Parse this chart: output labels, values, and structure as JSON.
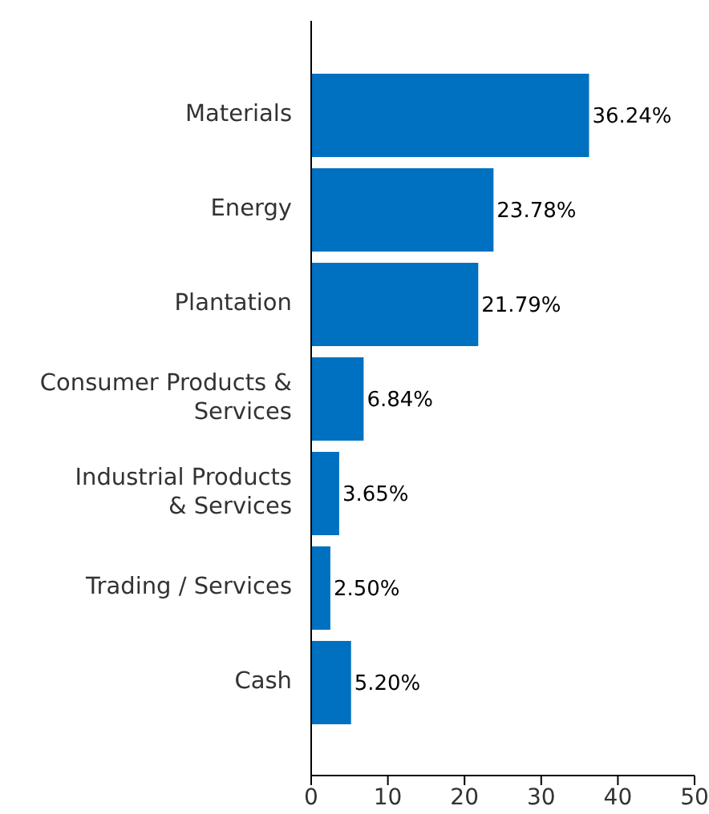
{
  "chart_data": {
    "type": "bar",
    "orientation": "horizontal",
    "categories": [
      "Materials",
      "Energy",
      "Plantation",
      "Consumer Products & Services",
      "Industrial Products & Services",
      "Trading / Services",
      "Cash"
    ],
    "values": [
      36.24,
      23.78,
      21.79,
      6.84,
      3.65,
      2.5,
      5.2
    ],
    "value_labels": [
      "36.24%",
      "23.78%",
      "21.79%",
      "6.84%",
      "3.65%",
      "2.50%",
      "5.20%"
    ],
    "color": "#0070c0",
    "xlim": [
      0,
      50
    ],
    "xticks": [
      0,
      10,
      20,
      30,
      40,
      50
    ],
    "grid": false,
    "legend": false
  }
}
